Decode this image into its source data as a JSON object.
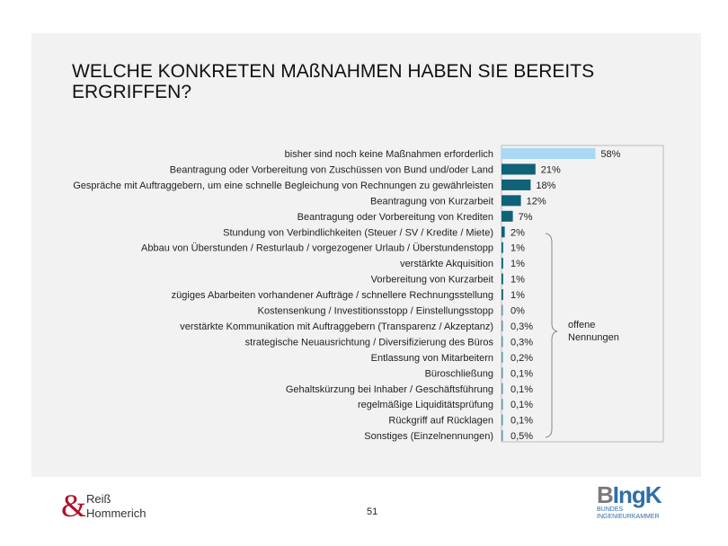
{
  "title": "WELCHE KONKRETEN MAßNAHMEN HABEN SIE BEREITS ERGRIFFEN?",
  "page_number": "51",
  "logos": {
    "left_amp": "&",
    "left_line1": "Reiß",
    "left_line2": "Hommerich",
    "right_b": "B",
    "right_rest": "IngK",
    "right_line1": "BUNDES",
    "right_line2": "INGENIEURKAMMER"
  },
  "colors": {
    "highlight": "#a8d8f3",
    "main": "#0f6277",
    "small": "#5b95a7"
  },
  "chart_data": {
    "type": "bar",
    "orientation": "horizontal",
    "xlim": [
      0,
      100
    ],
    "categories": [
      "bisher sind noch keine Maßnahmen erforderlich",
      "Beantragung oder Vorbereitung von Zuschüssen von Bund und/oder Land",
      "Gespräche mit Auftraggebern, um eine schnelle Begleichung von Rechnungen zu gewährleisten",
      "Beantragung von Kurzarbeit",
      "Beantragung oder Vorbereitung von Krediten",
      "Stundung von Verbindlichkeiten (Steuer / SV / Kredite / Miete)",
      "Abbau von Überstunden / Resturlaub / vorgezogener Urlaub / Überstundenstopp",
      "verstärkte Akquisition",
      "Vorbereitung von Kurzarbeit",
      "zügiges Abarbeiten vorhandener Aufträge / schnellere Rechnungsstellung",
      "Kostensenkung / Investitionsstopp / Einstellungsstopp",
      "verstärkte Kommunikation mit Auftraggebern (Transparenz / Akzeptanz)",
      "strategische Neuausrichtung / Diversifizierung des Büros",
      "Entlassung von Mitarbeitern",
      "Büroschließung",
      "Gehaltskürzung bei Inhaber / Geschäftsführung",
      "regelmäßige Liquiditätsprüfung",
      "Rückgriff auf Rücklagen",
      "Sonstiges (Einzelnennungen)"
    ],
    "values": [
      58,
      21,
      18,
      12,
      7,
      2,
      1,
      1,
      1,
      1,
      0.4,
      0.3,
      0.3,
      0.2,
      0.1,
      0.1,
      0.1,
      0.1,
      0.5
    ],
    "labels": [
      "58%",
      "21%",
      "18%",
      "12%",
      "7%",
      "2%",
      "1%",
      "1%",
      "1%",
      "1%",
      "0%",
      "0,3%",
      "0,3%",
      "0,2%",
      "0,1%",
      "0,1%",
      "0,1%",
      "0,1%",
      "0,5%"
    ],
    "annotation": {
      "line1": "offene",
      "line2": "Nennungen"
    }
  }
}
